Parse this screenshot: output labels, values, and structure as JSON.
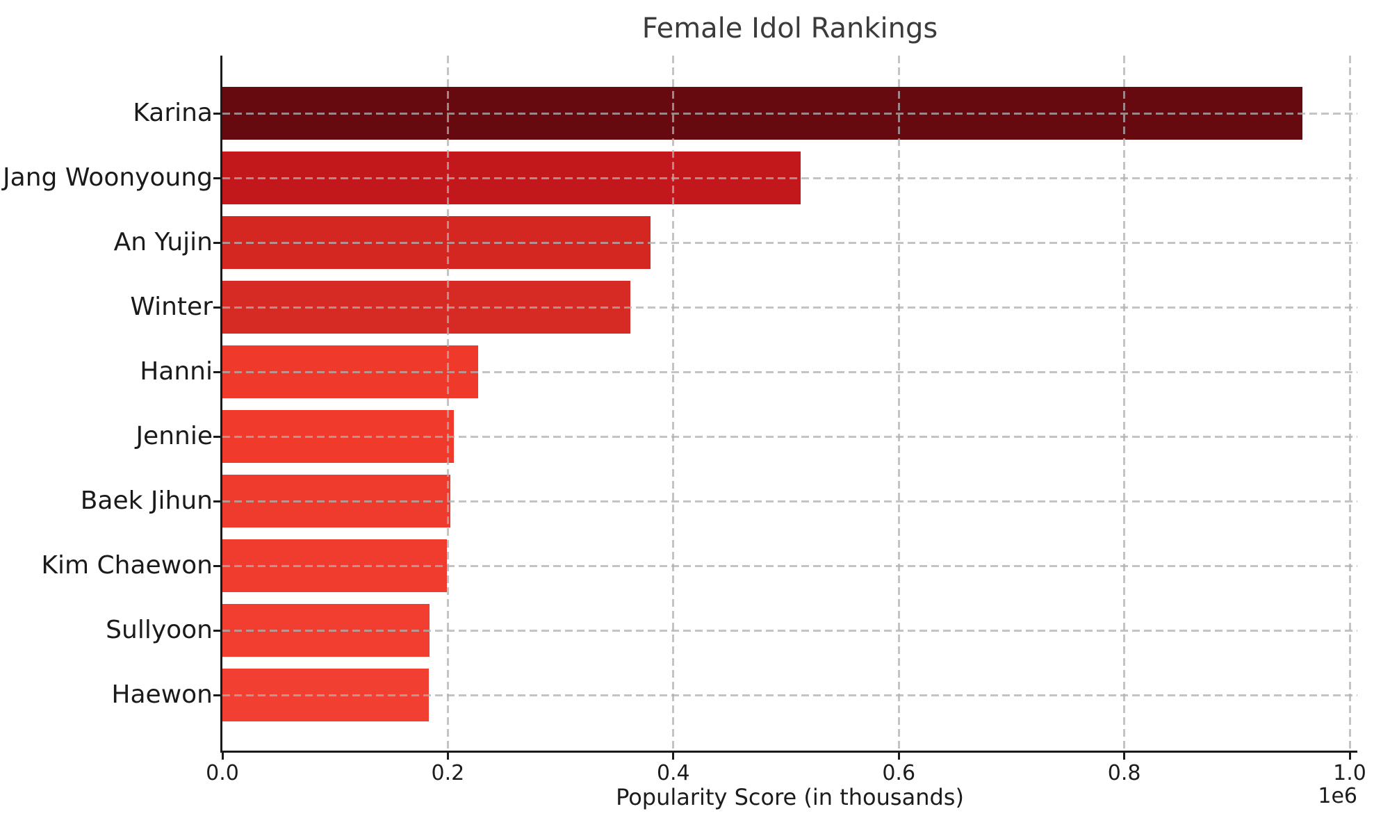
{
  "chart_data": {
    "type": "bar",
    "orientation": "horizontal",
    "title": "Female Idol Rankings",
    "xlabel": "Popularity Score (in thousands)",
    "ylabel": "",
    "x_axis_offset_label": "1e6",
    "xlim": [
      0,
      1000000
    ],
    "x_tick_values": [
      0,
      200000,
      400000,
      600000,
      800000,
      1000000
    ],
    "x_tick_labels": [
      "0.0",
      "0.2",
      "0.4",
      "0.6",
      "0.8",
      "1.0"
    ],
    "grid": true,
    "grid_style": "dashed",
    "legend": "none",
    "categories": [
      "Karina",
      "Jang Woonyoung",
      "An Yujin",
      "Winter",
      "Hanni",
      "Jennie",
      "Baek Jihun",
      "Kim Chaewon",
      "Sullyoon",
      "Haewon"
    ],
    "values": [
      958000,
      513000,
      380000,
      362000,
      227000,
      205000,
      202000,
      199000,
      184000,
      183000
    ],
    "bar_colors": [
      "#670a0f",
      "#c2181b",
      "#d52722",
      "#d62a24",
      "#ee392b",
      "#ef3a2c",
      "#ef3b2d",
      "#f03c2e",
      "#f13e30",
      "#f13f31"
    ],
    "colors": {
      "background": "#ffffff",
      "title_text": "#3b3b3b",
      "axis_text": "#1c1c1c",
      "spine": "#1a1a1a",
      "gridline": "#b0b0b0"
    }
  }
}
